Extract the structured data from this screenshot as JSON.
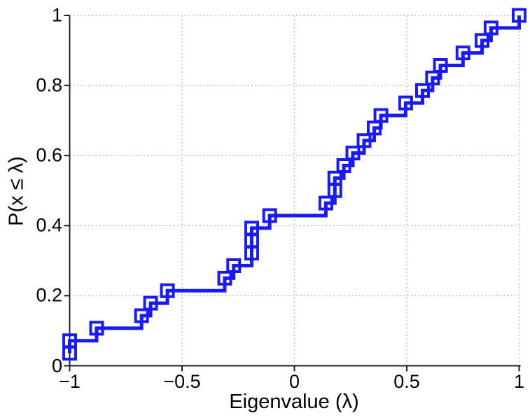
{
  "figure": {
    "background": "#ffffff"
  },
  "chart_data": {
    "type": "line",
    "subtype": "empirical_cdf_stairs_with_open_square_markers",
    "title": "",
    "xlabel": "Eigenvalue (λ)",
    "ylabel": "P(x ≤ λ)",
    "xlim": [
      -1,
      1
    ],
    "ylim": [
      0,
      1
    ],
    "grid": true,
    "grid_style": "dotted",
    "legend": null,
    "n_samples": 28,
    "samples_sorted": [
      -1.0,
      -1.0,
      -0.88,
      -0.68,
      -0.64,
      -0.565,
      -0.31,
      -0.27,
      -0.19,
      -0.19,
      -0.19,
      -0.11,
      0.14,
      0.18,
      0.18,
      0.22,
      0.26,
      0.31,
      0.355,
      0.385,
      0.495,
      0.57,
      0.615,
      0.65,
      0.75,
      0.835,
      0.875,
      1.0
    ],
    "cdf_values": [
      0.0357,
      0.0714,
      0.1071,
      0.1429,
      0.1786,
      0.2143,
      0.25,
      0.2857,
      0.3214,
      0.3571,
      0.3929,
      0.4286,
      0.4643,
      0.5,
      0.5357,
      0.5714,
      0.6071,
      0.6429,
      0.6786,
      0.7143,
      0.75,
      0.7857,
      0.8214,
      0.8571,
      0.8929,
      0.9286,
      0.9643,
      1.0
    ],
    "x_ticks": [
      {
        "value": -1,
        "label": "−1"
      },
      {
        "value": -0.5,
        "label": "−0.5"
      },
      {
        "value": 0,
        "label": "0"
      },
      {
        "value": 0.5,
        "label": "0.5"
      },
      {
        "value": 1,
        "label": "1"
      }
    ],
    "y_ticks": [
      {
        "value": 0,
        "label": "0"
      },
      {
        "value": 0.2,
        "label": "0.2"
      },
      {
        "value": 0.4,
        "label": "0.4"
      },
      {
        "value": 0.6,
        "label": "0.6"
      },
      {
        "value": 0.8,
        "label": "0.8"
      },
      {
        "value": 1,
        "label": "1"
      }
    ],
    "line_color": "#1a1af2",
    "line_width": 5,
    "marker": "open-square",
    "marker_size": 17,
    "marker_edge_width": 4,
    "grid_color": "#b3b3b3",
    "axis_color": "#222222",
    "tick_label_color": "#000000"
  }
}
